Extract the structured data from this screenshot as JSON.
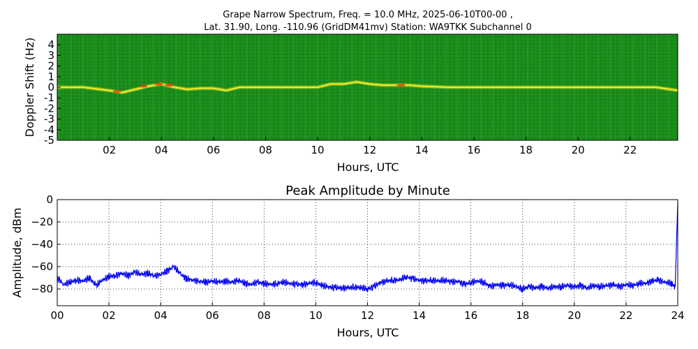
{
  "chart_data": [
    {
      "type": "heatmap",
      "title_line1": "Grape Narrow Spectrum, Freq. = 10.0 MHz, 2025-06-10T00-00 ,",
      "title_line2": "Lat.  31.90, Long. -110.96 (GridDM41mv) Station: WA9TKK Subchannel 0",
      "xlabel": "Hours, UTC",
      "ylabel": "Doppler Shift (Hz)",
      "xlim": [
        0,
        23.83
      ],
      "ylim": [
        -5,
        5
      ],
      "x_ticks": [
        "02",
        "04",
        "06",
        "08",
        "10",
        "12",
        "14",
        "16",
        "18",
        "20",
        "22"
      ],
      "x_tick_values": [
        2,
        4,
        6,
        8,
        10,
        12,
        14,
        16,
        18,
        20,
        22
      ],
      "y_ticks": [
        "4",
        "3",
        "2",
        "1",
        "0",
        "-1",
        "-2",
        "-3",
        "-4",
        "-5"
      ],
      "y_tick_values": [
        4,
        3,
        2,
        1,
        0,
        -1,
        -2,
        -3,
        -4,
        -5
      ],
      "background_color": "#1a8a1a",
      "trace_color": "#f2ea2a",
      "hot_color": "#e03a10",
      "doppler_trace": {
        "hours": [
          0,
          1,
          2,
          2.5,
          3,
          3.5,
          4,
          4.5,
          5,
          5.5,
          6,
          6.5,
          7,
          7.5,
          8,
          8.5,
          9,
          9.5,
          10,
          10.5,
          11,
          11.5,
          12,
          12.5,
          13,
          13.5,
          14,
          15,
          16,
          17,
          18,
          19,
          20,
          21,
          22,
          23,
          23.83
        ],
        "shift_hz": [
          0.0,
          0.0,
          -0.3,
          -0.5,
          -0.2,
          0.1,
          0.3,
          0.0,
          -0.2,
          -0.1,
          -0.1,
          -0.3,
          0.0,
          0.0,
          0.0,
          0.0,
          0.0,
          0.0,
          0.0,
          0.3,
          0.3,
          0.5,
          0.3,
          0.2,
          0.2,
          0.2,
          0.1,
          0.0,
          0.0,
          0.0,
          0.0,
          0.0,
          0.0,
          0.0,
          0.0,
          0.0,
          -0.3
        ]
      },
      "grid": false
    },
    {
      "type": "line",
      "title": "Peak Amplitude by Minute",
      "xlabel": "Hours, UTC",
      "ylabel": "Amplitude, dBm",
      "xlim": [
        0,
        24
      ],
      "ylim": [
        -95,
        0
      ],
      "x_ticks": [
        "00",
        "02",
        "04",
        "06",
        "08",
        "10",
        "12",
        "14",
        "16",
        "18",
        "20",
        "22",
        "24"
      ],
      "x_tick_values": [
        0,
        2,
        4,
        6,
        8,
        10,
        12,
        14,
        16,
        18,
        20,
        22,
        24
      ],
      "y_ticks": [
        "0",
        "−20",
        "−40",
        "−60",
        "−80"
      ],
      "y_tick_values": [
        0,
        -20,
        -40,
        -60,
        -80
      ],
      "grid": true,
      "series_color": "#0000ee",
      "series": [
        {
          "x": [
            0.0,
            0.25,
            0.5,
            0.75,
            1.0,
            1.25,
            1.5,
            1.75,
            2.0,
            2.25,
            2.5,
            2.75,
            3.0,
            3.25,
            3.5,
            3.75,
            4.0,
            4.25,
            4.5,
            4.75,
            5.0,
            5.25,
            5.5,
            5.75,
            6.0,
            6.25,
            6.5,
            6.75,
            7.0,
            7.25,
            7.5,
            7.75,
            8.0,
            8.25,
            8.5,
            8.75,
            9.0,
            9.25,
            9.5,
            9.75,
            10.0,
            10.25,
            10.5,
            10.75,
            11.0,
            11.25,
            11.5,
            11.75,
            12.0,
            12.25,
            12.5,
            12.75,
            13.0,
            13.25,
            13.5,
            13.75,
            14.0,
            14.25,
            14.5,
            14.75,
            15.0,
            15.25,
            15.5,
            15.75,
            16.0,
            16.25,
            16.5,
            16.75,
            17.0,
            17.25,
            17.5,
            17.75,
            18.0,
            18.25,
            18.5,
            18.75,
            19.0,
            19.25,
            19.5,
            19.75,
            20.0,
            20.25,
            20.5,
            20.75,
            21.0,
            21.25,
            21.5,
            21.75,
            22.0,
            22.25,
            22.5,
            22.75,
            23.0,
            23.25,
            23.5,
            23.75,
            23.9,
            24.0
          ],
          "y": [
            -70,
            -76,
            -74,
            -72,
            -73,
            -70,
            -77,
            -72,
            -69,
            -68,
            -66,
            -68,
            -65,
            -67,
            -66,
            -68,
            -67,
            -64,
            -60,
            -66,
            -71,
            -72,
            -73,
            -74,
            -73,
            -74,
            -73,
            -74,
            -72,
            -75,
            -76,
            -74,
            -75,
            -76,
            -75,
            -74,
            -75,
            -76,
            -76,
            -75,
            -74,
            -77,
            -78,
            -79,
            -79,
            -79,
            -78,
            -79,
            -80,
            -78,
            -74,
            -73,
            -72,
            -72,
            -69,
            -71,
            -72,
            -73,
            -72,
            -73,
            -72,
            -74,
            -73,
            -76,
            -74,
            -73,
            -74,
            -78,
            -76,
            -77,
            -76,
            -78,
            -80,
            -78,
            -79,
            -78,
            -79,
            -78,
            -78,
            -77,
            -78,
            -77,
            -79,
            -77,
            -78,
            -77,
            -76,
            -78,
            -76,
            -77,
            -75,
            -75,
            -73,
            -72,
            -74,
            -75,
            -78,
            -2
          ]
        }
      ]
    }
  ]
}
